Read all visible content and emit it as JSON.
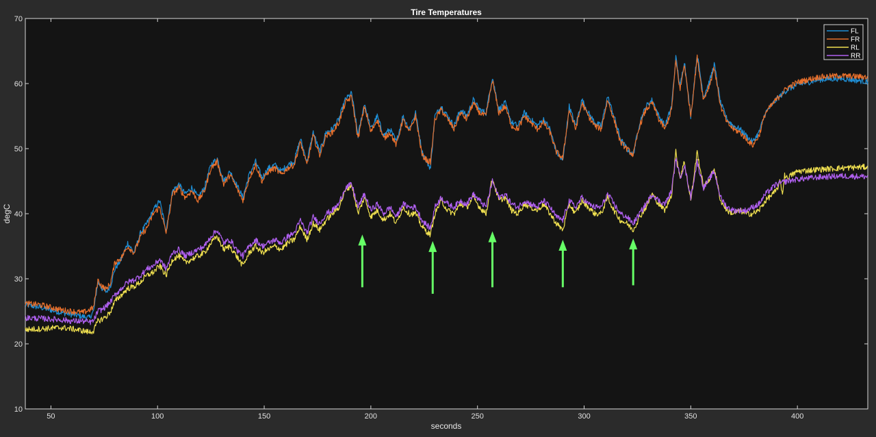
{
  "chart_data": {
    "type": "line",
    "title": "Tire Temperatures",
    "xlabel": "seconds",
    "ylabel": "degC",
    "xlim": [
      38,
      433
    ],
    "ylim": [
      10,
      70
    ],
    "xticks": [
      50,
      100,
      150,
      200,
      250,
      300,
      350,
      400
    ],
    "yticks": [
      10,
      20,
      30,
      40,
      50,
      60,
      70
    ],
    "grid": false,
    "legend_position": "top-right",
    "background": "#141414",
    "series": [
      {
        "name": "FL",
        "color": "#1f8fd6",
        "x": [
          38,
          45,
          50,
          55,
          60,
          65,
          68,
          70,
          72,
          74,
          76,
          78,
          80,
          83,
          86,
          89,
          92,
          95,
          98,
          101,
          104,
          107,
          110,
          113,
          116,
          119,
          122,
          125,
          128,
          131,
          134,
          137,
          140,
          143,
          146,
          149,
          152,
          155,
          158,
          161,
          164,
          167,
          170,
          173,
          176,
          179,
          182,
          185,
          188,
          191,
          194,
          197,
          200,
          203,
          206,
          209,
          212,
          215,
          218,
          221,
          224,
          227,
          228,
          230,
          233,
          236,
          239,
          242,
          245,
          248,
          251,
          254,
          257,
          260,
          263,
          266,
          269,
          272,
          275,
          278,
          281,
          284,
          287,
          290,
          293,
          296,
          299,
          302,
          305,
          308,
          311,
          314,
          317,
          320,
          323,
          326,
          329,
          332,
          335,
          338,
          341,
          343,
          345,
          347,
          350,
          353,
          356,
          359,
          361,
          364,
          367,
          370,
          373,
          376,
          379,
          382,
          385,
          390,
          395,
          400,
          410,
          420,
          433
        ],
        "values": [
          26.0,
          25.6,
          25.2,
          24.8,
          24.5,
          24.2,
          24.0,
          25.0,
          29.5,
          28.5,
          28.0,
          29.0,
          31.5,
          33.0,
          35.5,
          34.0,
          37.0,
          38.5,
          40.5,
          42.0,
          37.5,
          43.5,
          44.5,
          43.0,
          44.0,
          42.5,
          44.0,
          47.5,
          48.5,
          45.0,
          46.5,
          44.5,
          42.5,
          46.0,
          48.0,
          45.5,
          47.0,
          47.5,
          46.5,
          47.5,
          48.0,
          51.5,
          48.0,
          52.5,
          49.5,
          52.5,
          53.0,
          54.5,
          57.5,
          58.5,
          52.0,
          57.0,
          53.0,
          55.0,
          52.0,
          53.0,
          51.0,
          55.0,
          53.0,
          55.5,
          49.5,
          47.5,
          47.0,
          55.0,
          56.5,
          55.0,
          53.5,
          56.0,
          55.0,
          57.5,
          56.0,
          55.5,
          61.0,
          56.0,
          57.0,
          54.0,
          53.5,
          55.5,
          54.5,
          53.5,
          54.5,
          53.0,
          49.5,
          48.0,
          56.5,
          53.5,
          57.5,
          55.5,
          54.0,
          53.5,
          58.0,
          55.0,
          51.5,
          50.0,
          49.0,
          54.0,
          56.5,
          57.5,
          55.0,
          53.5,
          56.5,
          64.0,
          59.5,
          63.5,
          55.0,
          64.5,
          58.0,
          60.5,
          63.0,
          57.0,
          54.5,
          53.5,
          53.0,
          52.0,
          51.0,
          52.5,
          55.5,
          57.5,
          59.0,
          59.8,
          60.6,
          60.8,
          60.3
        ]
      },
      {
        "name": "FR",
        "color": "#e8702c",
        "x": [
          38,
          45,
          50,
          55,
          60,
          65,
          68,
          70,
          72,
          74,
          76,
          78,
          80,
          83,
          86,
          89,
          92,
          95,
          98,
          101,
          104,
          107,
          110,
          113,
          116,
          119,
          122,
          125,
          128,
          131,
          134,
          137,
          140,
          143,
          146,
          149,
          152,
          155,
          158,
          161,
          164,
          167,
          170,
          173,
          176,
          179,
          182,
          185,
          188,
          191,
          194,
          197,
          200,
          203,
          206,
          209,
          212,
          215,
          218,
          221,
          224,
          227,
          228,
          230,
          233,
          236,
          239,
          242,
          245,
          248,
          251,
          254,
          257,
          260,
          263,
          266,
          269,
          272,
          275,
          278,
          281,
          284,
          287,
          290,
          293,
          296,
          299,
          302,
          305,
          308,
          311,
          314,
          317,
          320,
          323,
          326,
          329,
          332,
          335,
          338,
          341,
          343,
          345,
          347,
          350,
          353,
          356,
          359,
          361,
          364,
          367,
          370,
          373,
          376,
          379,
          382,
          385,
          390,
          395,
          400,
          410,
          420,
          433
        ],
        "values": [
          26.2,
          26.0,
          25.6,
          25.2,
          25.0,
          24.8,
          25.2,
          25.6,
          29.8,
          28.8,
          28.4,
          29.4,
          32.5,
          33.2,
          35.0,
          34.0,
          36.5,
          37.8,
          40.0,
          41.0,
          37.0,
          43.0,
          44.0,
          42.5,
          43.5,
          42.0,
          43.5,
          47.0,
          48.0,
          44.5,
          46.0,
          44.0,
          42.0,
          45.5,
          47.5,
          45.0,
          46.5,
          47.0,
          46.0,
          47.0,
          47.5,
          51.0,
          47.5,
          52.0,
          49.0,
          52.0,
          52.5,
          54.0,
          57.0,
          58.0,
          51.5,
          56.5,
          52.5,
          54.5,
          51.5,
          52.5,
          50.5,
          54.5,
          52.5,
          55.0,
          49.0,
          48.0,
          48.0,
          54.5,
          56.0,
          54.5,
          53.0,
          55.5,
          54.5,
          57.0,
          55.5,
          55.0,
          60.5,
          55.5,
          56.5,
          53.5,
          53.0,
          55.0,
          54.0,
          53.0,
          54.0,
          52.5,
          49.5,
          48.5,
          56.0,
          53.0,
          57.0,
          55.0,
          53.5,
          53.0,
          57.5,
          54.5,
          51.0,
          50.0,
          49.0,
          53.5,
          56.0,
          57.0,
          54.5,
          53.0,
          56.0,
          63.5,
          59.0,
          63.0,
          55.0,
          64.0,
          57.5,
          60.0,
          62.5,
          56.5,
          54.0,
          53.0,
          52.5,
          51.5,
          50.5,
          52.0,
          55.5,
          57.5,
          59.3,
          60.2,
          61.0,
          61.2,
          61.0
        ]
      },
      {
        "name": "RL",
        "color": "#f0e050",
        "x": [
          38,
          45,
          50,
          55,
          60,
          65,
          68,
          70,
          72,
          74,
          76,
          78,
          80,
          83,
          86,
          89,
          92,
          95,
          98,
          101,
          104,
          107,
          110,
          113,
          116,
          119,
          122,
          125,
          128,
          131,
          134,
          137,
          140,
          143,
          146,
          149,
          152,
          155,
          158,
          161,
          164,
          167,
          170,
          173,
          176,
          179,
          182,
          185,
          188,
          191,
          194,
          197,
          200,
          203,
          206,
          209,
          212,
          215,
          218,
          221,
          224,
          227,
          228,
          230,
          233,
          236,
          239,
          242,
          245,
          248,
          251,
          254,
          257,
          260,
          263,
          266,
          269,
          272,
          275,
          278,
          281,
          284,
          287,
          290,
          293,
          296,
          299,
          302,
          305,
          308,
          311,
          314,
          317,
          320,
          323,
          326,
          329,
          332,
          335,
          338,
          341,
          343,
          345,
          347,
          350,
          353,
          356,
          359,
          361,
          364,
          367,
          370,
          373,
          376,
          379,
          382,
          385,
          390,
          392,
          393,
          394,
          395,
          400,
          410,
          420,
          433
        ],
        "values": [
          22.2,
          22.3,
          22.4,
          22.5,
          22.3,
          22.0,
          21.8,
          22.0,
          23.5,
          23.8,
          24.2,
          25.0,
          26.5,
          27.5,
          28.5,
          28.8,
          29.5,
          30.5,
          31.0,
          32.0,
          30.5,
          33.0,
          33.5,
          32.5,
          33.0,
          33.5,
          34.0,
          35.5,
          36.5,
          34.5,
          35.0,
          33.5,
          32.0,
          34.0,
          35.0,
          34.0,
          34.5,
          35.0,
          34.5,
          35.5,
          36.0,
          38.0,
          36.0,
          38.5,
          37.5,
          39.0,
          40.0,
          41.0,
          43.5,
          44.5,
          40.0,
          42.5,
          39.5,
          40.5,
          39.0,
          40.0,
          38.5,
          41.0,
          40.0,
          40.0,
          38.0,
          37.0,
          36.8,
          40.0,
          42.0,
          40.5,
          40.0,
          41.5,
          41.0,
          42.5,
          41.0,
          40.0,
          45.5,
          42.0,
          42.5,
          40.5,
          40.0,
          41.5,
          41.0,
          40.5,
          41.5,
          40.0,
          38.5,
          37.5,
          41.5,
          40.0,
          42.0,
          41.0,
          40.0,
          40.0,
          42.5,
          40.5,
          39.0,
          38.5,
          37.5,
          39.5,
          41.0,
          43.0,
          41.5,
          40.5,
          43.0,
          49.5,
          45.5,
          48.0,
          42.0,
          49.5,
          44.0,
          45.5,
          47.0,
          42.0,
          40.5,
          40.0,
          40.5,
          40.0,
          40.0,
          40.5,
          42.0,
          43.5,
          45.0,
          43.0,
          46.0,
          45.5,
          46.5,
          46.8,
          47.0,
          47.2
        ]
      },
      {
        "name": "RR",
        "color": "#b060f0",
        "x": [
          38,
          45,
          50,
          55,
          60,
          65,
          68,
          70,
          72,
          74,
          76,
          78,
          80,
          83,
          86,
          89,
          92,
          95,
          98,
          101,
          104,
          107,
          110,
          113,
          116,
          119,
          122,
          125,
          128,
          131,
          134,
          137,
          140,
          143,
          146,
          149,
          152,
          155,
          158,
          161,
          164,
          167,
          170,
          173,
          176,
          179,
          182,
          185,
          188,
          191,
          194,
          197,
          200,
          203,
          206,
          209,
          212,
          215,
          218,
          221,
          224,
          227,
          228,
          230,
          233,
          236,
          239,
          242,
          245,
          248,
          251,
          254,
          257,
          260,
          263,
          266,
          269,
          272,
          275,
          278,
          281,
          284,
          287,
          290,
          293,
          296,
          299,
          302,
          305,
          308,
          311,
          314,
          317,
          320,
          323,
          326,
          329,
          332,
          335,
          338,
          341,
          343,
          345,
          347,
          350,
          353,
          356,
          359,
          361,
          364,
          367,
          370,
          373,
          376,
          379,
          382,
          385,
          390,
          395,
          400,
          410,
          420,
          433
        ],
        "values": [
          24.0,
          23.9,
          23.8,
          23.7,
          23.5,
          23.5,
          23.3,
          23.5,
          25.0,
          25.3,
          25.8,
          26.5,
          27.5,
          28.5,
          29.5,
          29.8,
          30.5,
          31.5,
          32.0,
          33.0,
          31.5,
          34.0,
          34.5,
          33.5,
          34.0,
          34.5,
          35.0,
          36.5,
          37.5,
          35.5,
          36.0,
          34.5,
          33.5,
          35.0,
          36.0,
          35.0,
          35.5,
          36.0,
          35.5,
          36.5,
          37.0,
          39.0,
          37.0,
          39.5,
          38.5,
          40.0,
          40.5,
          41.5,
          44.0,
          44.5,
          41.0,
          43.0,
          40.5,
          41.5,
          40.0,
          41.0,
          39.5,
          41.5,
          41.0,
          41.0,
          39.0,
          38.0,
          37.8,
          41.0,
          42.5,
          41.5,
          41.0,
          42.0,
          41.5,
          43.0,
          42.0,
          41.0,
          45.0,
          42.5,
          43.0,
          41.5,
          41.0,
          42.0,
          41.5,
          41.0,
          42.0,
          41.0,
          39.5,
          39.0,
          42.0,
          41.0,
          42.5,
          41.5,
          41.0,
          41.0,
          43.0,
          41.5,
          40.0,
          39.5,
          38.5,
          40.0,
          41.5,
          43.0,
          42.0,
          41.5,
          43.5,
          48.5,
          45.5,
          47.5,
          42.5,
          48.0,
          44.0,
          45.5,
          46.5,
          42.5,
          41.0,
          40.5,
          40.5,
          40.5,
          41.0,
          41.5,
          43.0,
          44.5,
          45.0,
          45.3,
          45.6,
          45.8,
          45.7
        ]
      }
    ],
    "annotations": {
      "arrows": [
        {
          "x": 196,
          "y_tail": 28.7,
          "y_head": 36.8,
          "color": "#66ff66"
        },
        {
          "x": 229,
          "y_tail": 27.7,
          "y_head": 35.8,
          "color": "#66ff66"
        },
        {
          "x": 257,
          "y_tail": 28.7,
          "y_head": 37.3,
          "color": "#66ff66"
        },
        {
          "x": 290,
          "y_tail": 28.7,
          "y_head": 36.0,
          "color": "#66ff66"
        },
        {
          "x": 323,
          "y_tail": 29.0,
          "y_head": 36.2,
          "color": "#66ff66"
        }
      ]
    }
  }
}
